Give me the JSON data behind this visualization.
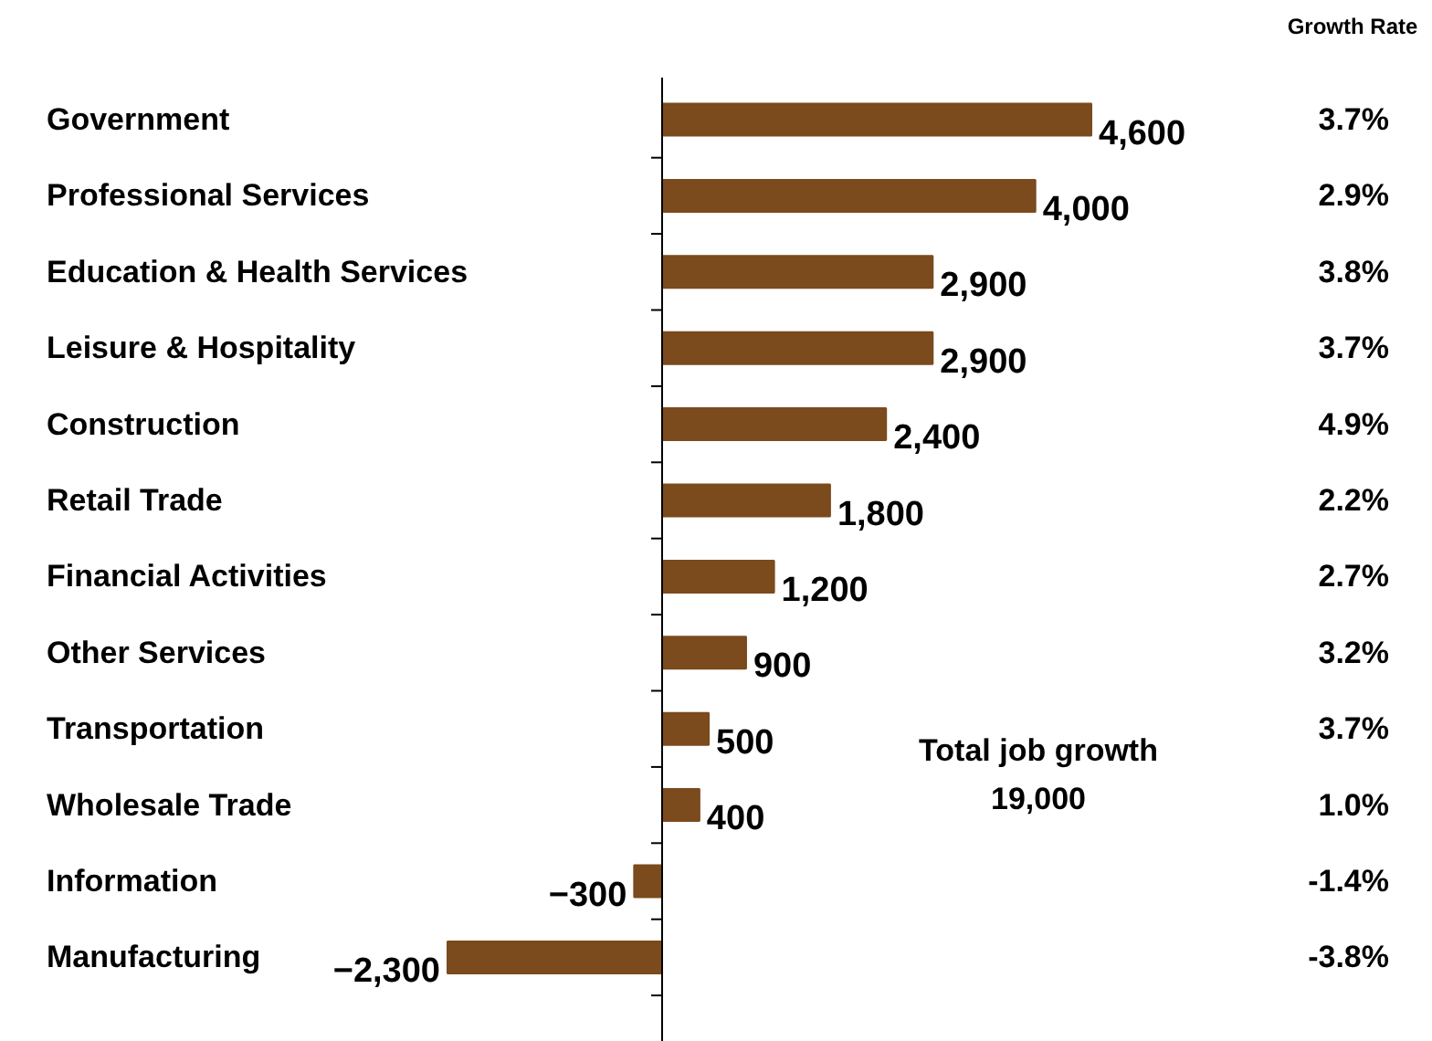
{
  "chart_data": {
    "type": "bar",
    "orientation": "horizontal",
    "categories": [
      "Government",
      "Professional Services",
      "Education & Health Services",
      "Leisure & Hospitality",
      "Construction",
      "Retail Trade",
      "Financial Activities",
      "Other Services",
      "Transportation",
      "Wholesale Trade",
      "Information",
      "Manufacturing"
    ],
    "values": [
      4600,
      4000,
      2900,
      2900,
      2400,
      1800,
      1200,
      900,
      500,
      400,
      -300,
      -2300
    ],
    "color": "#7b4a1d",
    "value_labels": [
      "4,600",
      "4,000",
      "2,900",
      "2,900",
      "2,400",
      "1,800",
      "1,200",
      "900",
      "500",
      "400",
      "−300",
      "−2,300"
    ],
    "annotations": [
      "Growth Rate",
      "Total job growth\n19,000",
      "3.7%",
      "2.9%",
      "3.8%",
      "3.7%",
      "4.9%",
      "2.2%",
      "2.7%",
      "3.2%",
      "3.7%",
      "1.0%",
      "-1.4%",
      "-3.8%"
    ]
  }
}
